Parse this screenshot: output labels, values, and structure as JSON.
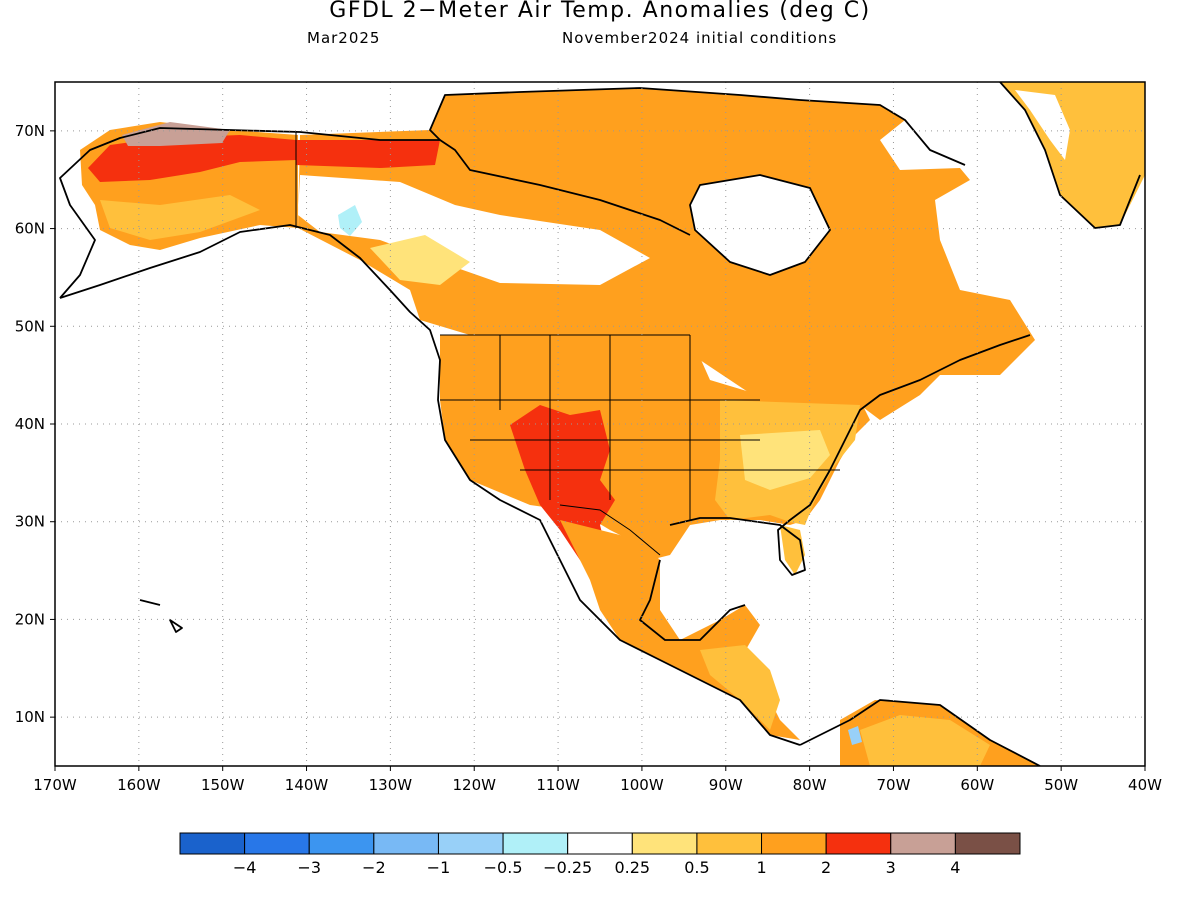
{
  "title": "GFDL 2−Meter Air Temp. Anomalies (deg C)",
  "subtitle_left": "Mar2025",
  "subtitle_right": "November2024 initial conditions",
  "map": {
    "lon_range": [
      -170,
      -40
    ],
    "lat_range": [
      5,
      75
    ],
    "lon_ticks": [
      {
        "value": -170,
        "label": "170W"
      },
      {
        "value": -160,
        "label": "160W"
      },
      {
        "value": -150,
        "label": "150W"
      },
      {
        "value": -140,
        "label": "140W"
      },
      {
        "value": -130,
        "label": "130W"
      },
      {
        "value": -120,
        "label": "120W"
      },
      {
        "value": -110,
        "label": "110W"
      },
      {
        "value": -100,
        "label": "100W"
      },
      {
        "value": -90,
        "label": "90W"
      },
      {
        "value": -80,
        "label": "80W"
      },
      {
        "value": -70,
        "label": "70W"
      },
      {
        "value": -60,
        "label": "60W"
      },
      {
        "value": -50,
        "label": "50W"
      },
      {
        "value": -40,
        "label": "40W"
      }
    ],
    "lat_ticks": [
      {
        "value": 10,
        "label": "10N"
      },
      {
        "value": 20,
        "label": "20N"
      },
      {
        "value": 30,
        "label": "30N"
      },
      {
        "value": 40,
        "label": "40N"
      },
      {
        "value": 50,
        "label": "50N"
      },
      {
        "value": 60,
        "label": "60N"
      },
      {
        "value": 70,
        "label": "70N"
      }
    ],
    "grid": "dotted"
  },
  "legend": {
    "colors": [
      "#1a62cc",
      "#2877e8",
      "#3c95f0",
      "#78b9f5",
      "#98d0f8",
      "#b0f0f8",
      "#ffffff",
      "#ffe37a",
      "#ffc03c",
      "#ffa01e",
      "#f5300e",
      "#c8a096",
      "#7a5046"
    ],
    "labels": [
      "−4",
      "−3",
      "−2",
      "−1",
      "−0.5",
      "−0.25",
      "0.25",
      "0.5",
      "1",
      "2",
      "3",
      "4"
    ]
  },
  "colors": {
    "bin_0.25_0.5": "#ffe37a",
    "bin_0.5_1": "#ffc03c",
    "bin_1_2": "#ffa01e",
    "bin_2_3": "#f5300e",
    "bin_3_4": "#c8a096",
    "bin_neg": "#b0f0f8",
    "bin_neg2": "#98d0f8"
  }
}
